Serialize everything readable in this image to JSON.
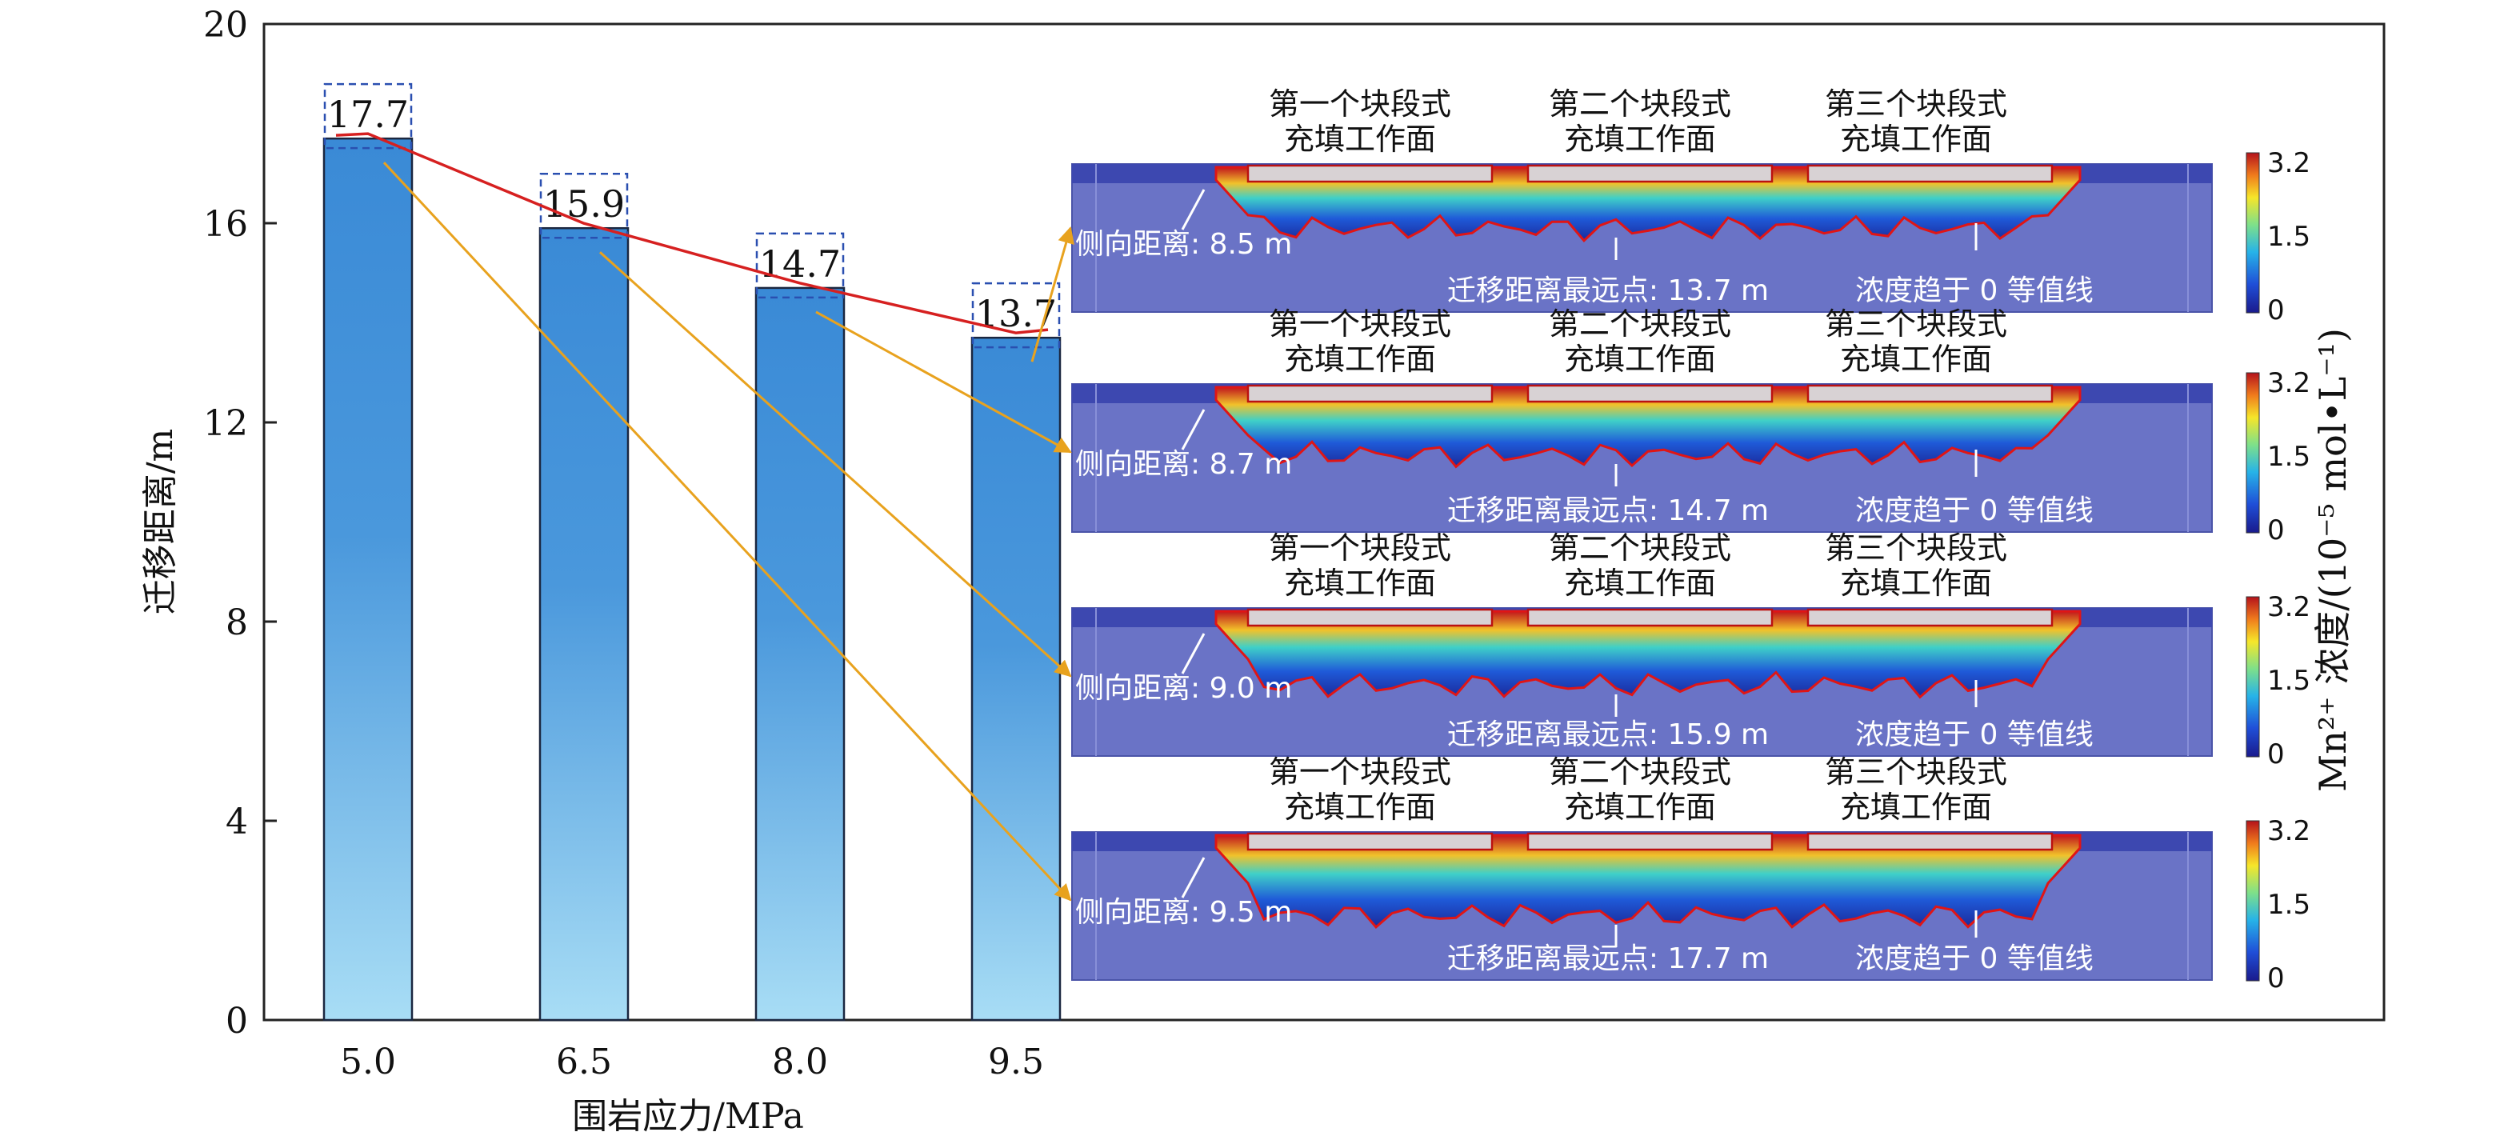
{
  "chart_data": {
    "type": "bar",
    "xlabel": "围岩应力/MPa",
    "ylabel": "迁移距离/m",
    "ylim": [
      0,
      20
    ],
    "yticks": [
      "0",
      "4",
      "8",
      "12",
      "16",
      "20"
    ],
    "categories": [
      "5.0",
      "6.5",
      "8.0",
      "9.5"
    ],
    "values": [
      17.7,
      15.9,
      14.7,
      13.7
    ],
    "value_labels": [
      "17.7",
      "15.9",
      "14.7",
      "13.7"
    ],
    "bar_color_top": "#3a8ad6",
    "bar_color_bottom": "#a8ddf5",
    "trend_line_color": "#d62020",
    "connector_color": "#e8a21e",
    "label_box_color": "#2a4fb0"
  },
  "panels": [
    {
      "faces": [
        [
          "第一个块段式",
          "充填工作面"
        ],
        [
          "第二个块段式",
          "充填工作面"
        ],
        [
          "第三个块段式",
          "充填工作面"
        ]
      ],
      "lateral": "侧向距离: 8.5 m",
      "farthest": "迁移距离最远点: 13.7 m",
      "contour": "浓度趋于 0 等值线",
      "cbar_ticks": [
        "3.2",
        "1.5",
        "0"
      ]
    },
    {
      "faces": [
        [
          "第一个块段式",
          "充填工作面"
        ],
        [
          "第二个块段式",
          "充填工作面"
        ],
        [
          "第三个块段式",
          "充填工作面"
        ]
      ],
      "lateral": "侧向距离: 8.7 m",
      "farthest": "迁移距离最远点: 14.7 m",
      "contour": "浓度趋于 0 等值线",
      "cbar_ticks": [
        "3.2",
        "1.5",
        "0"
      ]
    },
    {
      "faces": [
        [
          "第一个块段式",
          "充填工作面"
        ],
        [
          "第二个块段式",
          "充填工作面"
        ],
        [
          "第三个块段式",
          "充填工作面"
        ]
      ],
      "lateral": "侧向距离: 9.0 m",
      "farthest": "迁移距离最远点: 15.9 m",
      "contour": "浓度趋于 0 等值线",
      "cbar_ticks": [
        "3.2",
        "1.5",
        "0"
      ]
    },
    {
      "faces": [
        [
          "第一个块段式",
          "充填工作面"
        ],
        [
          "第二个块段式",
          "充填工作面"
        ],
        [
          "第三个块段式",
          "充填工作面"
        ]
      ],
      "lateral": "侧向距离: 9.5 m",
      "farthest": "迁移距离最远点: 17.7 m",
      "contour": "浓度趋于 0 等值线",
      "cbar_ticks": [
        "3.2",
        "1.5",
        "0"
      ]
    }
  ],
  "colorbar_label": "Mn²⁺ 浓度/(10⁻⁵ mol•L⁻¹)"
}
